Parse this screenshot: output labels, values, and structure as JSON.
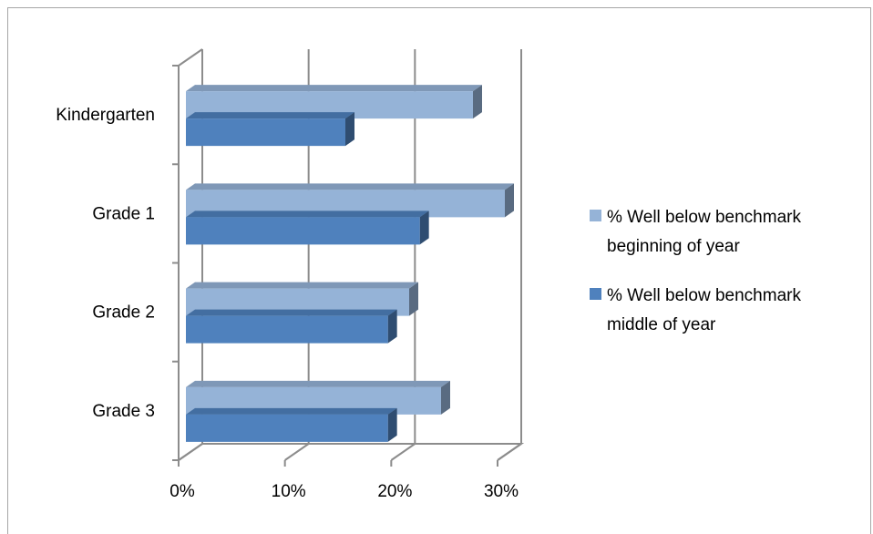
{
  "chart_data": {
    "type": "bar",
    "orientation": "horizontal",
    "three_d": true,
    "categories": [
      "Kindergarten",
      "Grade 1",
      "Grade 2",
      "Grade 3"
    ],
    "series": [
      {
        "name": "% Well below benchmark beginning of year",
        "name_lines": [
          "% Well below benchmark",
          "beginning of year"
        ],
        "color": "#95b3d7",
        "values": [
          27,
          30,
          21,
          24
        ]
      },
      {
        "name": "% Well below benchmark middle of year",
        "name_lines": [
          "% Well below benchmark",
          "middle of year"
        ],
        "color": "#4f81bd",
        "values": [
          15,
          22,
          19,
          19
        ]
      }
    ],
    "xlim": [
      0,
      30
    ],
    "xticks": [
      0,
      10,
      20,
      30
    ],
    "xtick_labels": [
      "0%",
      "10%",
      "20%",
      "30%"
    ],
    "grid": true,
    "legend": "right",
    "title": "",
    "xlabel": "",
    "ylabel": ""
  }
}
